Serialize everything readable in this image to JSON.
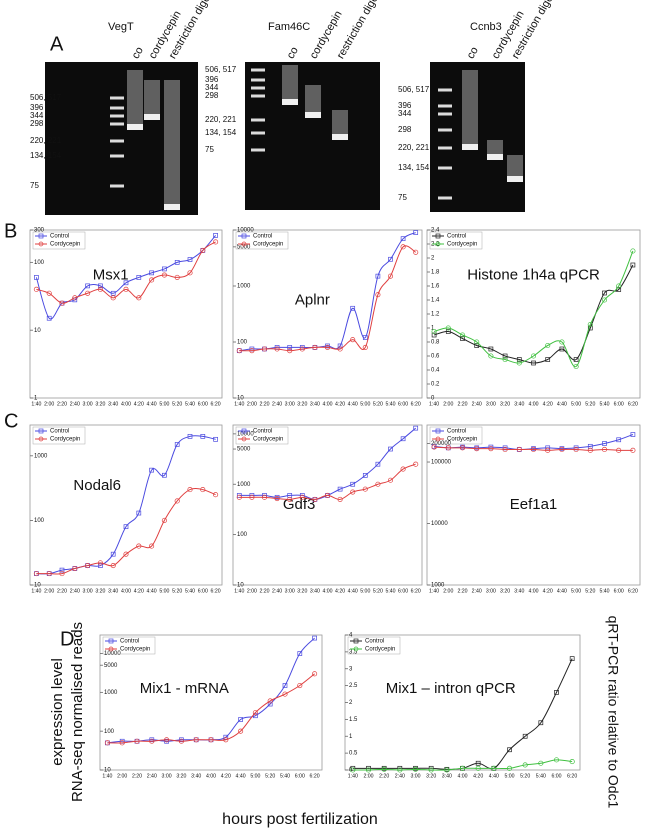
{
  "panels": [
    "A",
    "B",
    "C",
    "D"
  ],
  "gels": [
    {
      "name": "VegT",
      "lanes": [
        "co",
        "cordycepin",
        "restriction digest"
      ],
      "ladder": [
        "506, 517",
        "396",
        "344",
        "298",
        "220, 221",
        "134, 154",
        "75"
      ]
    },
    {
      "name": "Fam46C",
      "lanes": [
        "co",
        "cordycepin",
        "restriction digest"
      ],
      "ladder": [
        "506, 517",
        "396",
        "344",
        "298",
        "220, 221",
        "134, 154",
        "75"
      ]
    },
    {
      "name": "Ccnb3",
      "lanes": [
        "co",
        "cordycepin",
        "restriction digest"
      ],
      "ladder": [
        "506, 517",
        "396",
        "344",
        "298",
        "220, 221",
        "134, 154",
        "75"
      ]
    }
  ],
  "axis_labels": {
    "expression": "expression level",
    "rnaseq": "RNA-seq normalised reads",
    "qpcr": "qRT-PCR ratio relative to Odc1",
    "x": "hours post fertilization"
  },
  "chart_data": [
    {
      "type": "line",
      "title": "Msx1",
      "log": true,
      "ylim": [
        1,
        300
      ],
      "yticks": [
        1,
        10,
        100,
        300
      ],
      "categories": [
        "1:40",
        "2:00",
        "2:20",
        "2:40",
        "3:00",
        "3:20",
        "3:40",
        "4:00",
        "4:20",
        "4:40",
        "5:00",
        "5:20",
        "5:40",
        "6:00",
        "6:20"
      ],
      "series": [
        {
          "name": "Control",
          "color": "#4a4ae0",
          "values": [
            60,
            15,
            25,
            28,
            45,
            45,
            35,
            50,
            60,
            70,
            80,
            100,
            110,
            150,
            250
          ]
        },
        {
          "name": "Cordycepin",
          "color": "#e04040",
          "values": [
            40,
            35,
            25,
            30,
            35,
            40,
            30,
            40,
            30,
            55,
            65,
            60,
            70,
            150,
            200
          ]
        }
      ]
    },
    {
      "type": "line",
      "title": "Aplnr",
      "log": true,
      "ylim": [
        10,
        10000
      ],
      "yticks": [
        10,
        100,
        1000,
        5000,
        10000
      ],
      "categories": [
        "1:40",
        "2:00",
        "2:20",
        "2:40",
        "3:00",
        "3:20",
        "3:40",
        "4:00",
        "4:20",
        "4:40",
        "5:00",
        "5:20",
        "5:40",
        "6:00",
        "6:20"
      ],
      "series": [
        {
          "name": "Control",
          "color": "#4a4ae0",
          "values": [
            70,
            75,
            75,
            80,
            80,
            80,
            80,
            85,
            85,
            400,
            120,
            1500,
            3000,
            7000,
            9000
          ]
        },
        {
          "name": "Cordycepin",
          "color": "#e04040",
          "values": [
            70,
            70,
            75,
            75,
            70,
            75,
            80,
            80,
            75,
            110,
            80,
            700,
            1500,
            5000,
            4000
          ]
        }
      ]
    },
    {
      "type": "line",
      "title": "Histone 1h4a qPCR",
      "log": false,
      "ylim": [
        0,
        2.4
      ],
      "yticks": [
        0,
        0.2,
        0.4,
        0.6,
        0.8,
        1,
        1.2,
        1.4,
        1.6,
        1.8,
        2,
        2.2,
        2.4
      ],
      "categories": [
        "1:40",
        "2:00",
        "2:20",
        "2:40",
        "3:00",
        "3:20",
        "3:40",
        "4:00",
        "4:20",
        "4:40",
        "5:00",
        "5:20",
        "5:40",
        "6:00",
        "6:20"
      ],
      "series": [
        {
          "name": "Control",
          "color": "#222222",
          "values": [
            0.9,
            0.95,
            0.85,
            0.75,
            0.7,
            0.6,
            0.55,
            0.5,
            0.55,
            0.7,
            0.55,
            1.0,
            1.5,
            1.55,
            1.9
          ]
        },
        {
          "name": "Cordycepin",
          "color": "#40c040",
          "values": [
            0.95,
            1.0,
            0.9,
            0.8,
            0.6,
            0.55,
            0.5,
            0.6,
            0.75,
            0.8,
            0.45,
            1.05,
            1.4,
            1.6,
            2.1
          ]
        }
      ]
    },
    {
      "type": "line",
      "title": "Nodal6",
      "log": true,
      "ylim": [
        10,
        3000
      ],
      "yticks": [
        10,
        100,
        1000
      ],
      "categories": [
        "1:40",
        "2:00",
        "2:20",
        "2:40",
        "3:00",
        "3:20",
        "3:40",
        "4:00",
        "4:20",
        "4:40",
        "5:00",
        "5:20",
        "5:40",
        "6:00",
        "6:20"
      ],
      "series": [
        {
          "name": "Control",
          "color": "#4a4ae0",
          "values": [
            15,
            15,
            17,
            18,
            20,
            20,
            30,
            80,
            130,
            600,
            500,
            1500,
            2000,
            2000,
            1800
          ]
        },
        {
          "name": "Cordycepin",
          "color": "#e04040",
          "values": [
            15,
            15,
            15,
            18,
            20,
            22,
            20,
            30,
            40,
            40,
            100,
            200,
            300,
            300,
            250
          ]
        }
      ]
    },
    {
      "type": "line",
      "title": "Gdf3",
      "log": true,
      "ylim": [
        10,
        15000
      ],
      "yticks": [
        10,
        100,
        1000,
        5000,
        10000
      ],
      "categories": [
        "1:40",
        "2:00",
        "2:20",
        "2:40",
        "3:00",
        "3:20",
        "3:40",
        "4:00",
        "4:20",
        "4:40",
        "5:00",
        "5:20",
        "5:40",
        "6:00",
        "6:20"
      ],
      "series": [
        {
          "name": "Control",
          "color": "#4a4ae0",
          "values": [
            600,
            600,
            600,
            550,
            600,
            600,
            500,
            600,
            800,
            1000,
            1500,
            2500,
            5000,
            8000,
            13000
          ]
        },
        {
          "name": "Cordycepin",
          "color": "#e04040",
          "values": [
            550,
            550,
            550,
            520,
            500,
            550,
            500,
            600,
            500,
            700,
            800,
            1000,
            1200,
            2000,
            2500
          ]
        }
      ]
    },
    {
      "type": "line",
      "title": "Eef1a1",
      "log": true,
      "ylim": [
        1000,
        400000
      ],
      "yticks": [
        1000,
        10000,
        100000,
        200000
      ],
      "categories": [
        "1:40",
        "2:00",
        "2:20",
        "2:40",
        "3:00",
        "3:20",
        "3:40",
        "4:00",
        "4:20",
        "4:40",
        "5:00",
        "5:20",
        "5:40",
        "6:00",
        "6:20"
      ],
      "series": [
        {
          "name": "Control",
          "color": "#4a4ae0",
          "values": [
            180000,
            170000,
            175000,
            170000,
            175000,
            170000,
            160000,
            165000,
            170000,
            165000,
            170000,
            180000,
            200000,
            230000,
            280000
          ]
        },
        {
          "name": "Cordycepin",
          "color": "#e04040",
          "values": [
            175000,
            170000,
            170000,
            165000,
            165000,
            160000,
            160000,
            160000,
            155000,
            160000,
            160000,
            155000,
            160000,
            155000,
            155000
          ]
        }
      ]
    },
    {
      "type": "line",
      "title": "Mix1 - mRNA",
      "log": true,
      "ylim": [
        10,
        30000
      ],
      "yticks": [
        10,
        100,
        1000,
        5000,
        10000
      ],
      "categories": [
        "1:40",
        "2:00",
        "2:20",
        "2:40",
        "3:00",
        "3:20",
        "3:40",
        "4:00",
        "4:20",
        "4:40",
        "5:00",
        "5:20",
        "5:40",
        "6:00",
        "6:20"
      ],
      "series": [
        {
          "name": "Control",
          "color": "#4a4ae0",
          "values": [
            50,
            55,
            55,
            60,
            55,
            60,
            60,
            60,
            70,
            200,
            250,
            500,
            1500,
            10000,
            25000
          ]
        },
        {
          "name": "Cordycepin",
          "color": "#e04040",
          "values": [
            50,
            50,
            55,
            55,
            60,
            55,
            60,
            60,
            60,
            100,
            300,
            600,
            900,
            1500,
            3000
          ]
        }
      ]
    },
    {
      "type": "line",
      "title": "Mix1 – intron qPCR",
      "log": false,
      "ylim": [
        0,
        4
      ],
      "yticks": [
        0,
        0.5,
        1,
        1.5,
        2,
        2.5,
        3,
        3.5,
        4
      ],
      "categories": [
        "1:40",
        "2:00",
        "2:20",
        "2:40",
        "3:00",
        "3:20",
        "3:40",
        "4:00",
        "4:20",
        "4:40",
        "5:00",
        "5:20",
        "5:40",
        "6:00",
        "6:20"
      ],
      "series": [
        {
          "name": "Control",
          "color": "#222222",
          "values": [
            0.05,
            0.05,
            0.05,
            0.05,
            0.05,
            0.05,
            0.02,
            0.05,
            0.2,
            0.05,
            0.6,
            1.0,
            1.4,
            2.3,
            3.3
          ]
        },
        {
          "name": "Cordycepin",
          "color": "#40c040",
          "values": [
            0,
            0,
            0.02,
            0,
            0.02,
            0,
            0,
            0.05,
            0.05,
            0.05,
            0.05,
            0.15,
            0.2,
            0.3,
            0.25
          ]
        }
      ]
    }
  ]
}
